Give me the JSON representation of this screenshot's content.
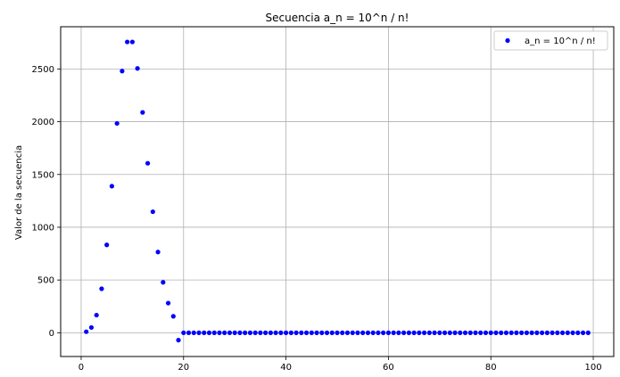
{
  "chart_data": {
    "type": "scatter",
    "title": "Secuencia a_n = 10^n / n!",
    "xlabel": "",
    "ylabel": "Valor de la secuencia",
    "xlim": [
      -4,
      104
    ],
    "ylim": [
      -225,
      2900
    ],
    "xticks": [
      0,
      20,
      40,
      60,
      80,
      100
    ],
    "yticks": [
      0,
      500,
      1000,
      1500,
      2000,
      2500
    ],
    "grid": true,
    "legend_position": "top-right",
    "series": [
      {
        "name": "a_n = 10^n / n!",
        "color": "#0000ff",
        "x": [
          1,
          2,
          3,
          4,
          5,
          6,
          7,
          8,
          9,
          10,
          11,
          12,
          13,
          14,
          15,
          16,
          17,
          18,
          19,
          20,
          21,
          22,
          23,
          24,
          25,
          26,
          27,
          28,
          29,
          30,
          31,
          32,
          33,
          34,
          35,
          36,
          37,
          38,
          39,
          40,
          41,
          42,
          43,
          44,
          45,
          46,
          47,
          48,
          49,
          50,
          51,
          52,
          53,
          54,
          55,
          56,
          57,
          58,
          59,
          60,
          61,
          62,
          63,
          64,
          65,
          66,
          67,
          68,
          69,
          70,
          71,
          72,
          73,
          74,
          75,
          76,
          77,
          78,
          79,
          80,
          81,
          82,
          83,
          84,
          85,
          86,
          87,
          88,
          89,
          90,
          91,
          92,
          93,
          94,
          95,
          96,
          97,
          98,
          99
        ],
        "y": [
          10,
          50,
          167,
          417,
          833,
          1389,
          1984,
          2480,
          2756,
          2756,
          2505,
          2088,
          1606,
          1147,
          765,
          478,
          281,
          156,
          -70,
          0,
          0,
          0,
          0,
          0,
          0,
          0,
          0,
          0,
          0,
          0,
          0,
          0,
          0,
          0,
          0,
          0,
          0,
          0,
          0,
          0,
          0,
          0,
          0,
          0,
          0,
          0,
          0,
          0,
          0,
          0,
          0,
          0,
          0,
          0,
          0,
          0,
          0,
          0,
          0,
          0,
          0,
          0,
          0,
          0,
          0,
          0,
          0,
          0,
          0,
          0,
          0,
          0,
          0,
          0,
          0,
          0,
          0,
          0,
          0,
          0,
          0,
          0,
          0,
          0,
          0,
          0,
          0,
          0,
          0,
          0,
          0,
          0,
          0,
          0,
          0,
          0,
          0,
          0,
          0
        ]
      }
    ]
  }
}
